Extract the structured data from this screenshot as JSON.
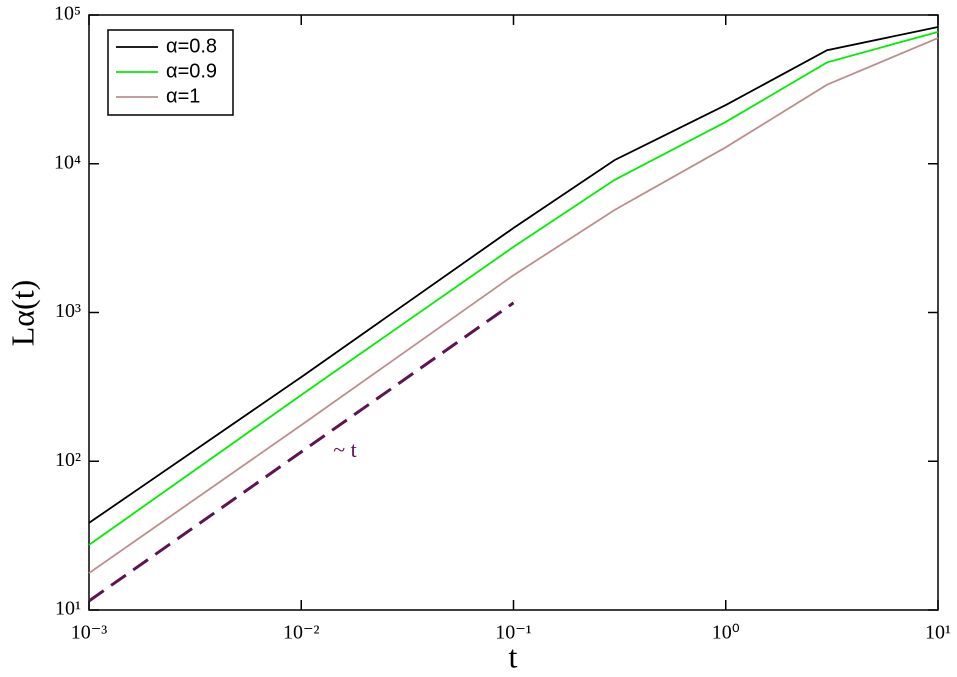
{
  "chart_data": {
    "type": "line",
    "xlabel": "t",
    "ylabel": "Lα(t)",
    "x": [
      0.001,
      0.01,
      0.1,
      0.3,
      1,
      3,
      10
    ],
    "series": [
      {
        "name": "α=0.8",
        "color": "#000000",
        "values": [
          38.5,
          368,
          3700,
          10600,
          24800,
          58000,
          83000
        ]
      },
      {
        "name": "α=0.9",
        "color": "#00ee00",
        "values": [
          27.4,
          279,
          2760,
          7800,
          19100,
          48000,
          77000
        ]
      },
      {
        "name": "α=1",
        "color": "#bc8f8f",
        "values": [
          17.7,
          175,
          1780,
          4900,
          12900,
          34000,
          70000
        ]
      }
    ],
    "reference_line": {
      "label": "~ t",
      "color": "#5e1450",
      "x": [
        0.001,
        0.1
      ],
      "values": [
        11.5,
        1160
      ]
    },
    "xscale": "log",
    "yscale": "log",
    "xlim": [
      0.001,
      10
    ],
    "ylim": [
      10,
      100000
    ],
    "xticks": [
      {
        "value": 0.001,
        "label": "10⁻³"
      },
      {
        "value": 0.01,
        "label": "10⁻²"
      },
      {
        "value": 0.1,
        "label": "10⁻¹"
      },
      {
        "value": 1,
        "label": "10⁰"
      },
      {
        "value": 10,
        "label": "10¹"
      }
    ],
    "yticks": [
      {
        "value": 10,
        "label": "10¹"
      },
      {
        "value": 100,
        "label": "10²"
      },
      {
        "value": 1000,
        "label": "10³"
      },
      {
        "value": 10000,
        "label": "10⁴"
      },
      {
        "value": 100000,
        "label": "10⁵"
      }
    ],
    "legend": "upper left"
  }
}
